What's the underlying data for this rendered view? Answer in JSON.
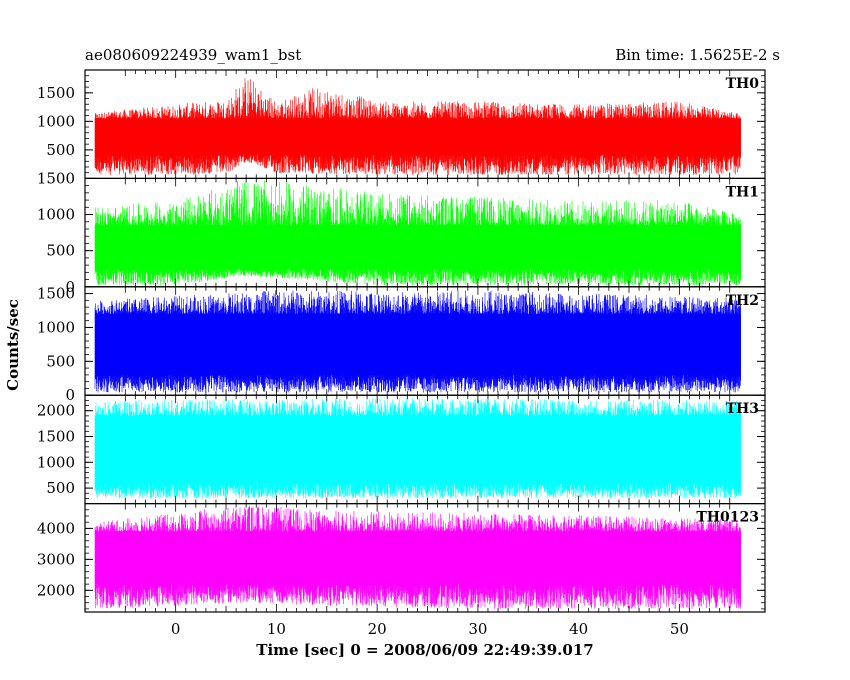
{
  "header": {
    "left": "ae080609224939_wam1_bst",
    "right": "Bin time: 1.5625E-2 s"
  },
  "chart_data": {
    "type": "line",
    "xlabel": "Time [sec] 0 = 2008/06/09 22:49:39.017",
    "ylabel": "Counts/sec",
    "xlim": [
      -9,
      58.5
    ],
    "x_ticks": [
      0,
      10,
      20,
      30,
      40,
      50
    ],
    "x_tick_labels": [
      "0",
      "10",
      "20",
      "30",
      "40",
      "50"
    ],
    "x_data_range": [
      -8,
      56
    ],
    "bin_time_s": 0.015625,
    "panels": [
      {
        "name": "TH0",
        "color": "#ff0000",
        "ylim": [
          0,
          1900
        ],
        "y_ticks": [
          500,
          1000,
          1500
        ],
        "y_tick_labels": [
          "500",
          "1000",
          "1500"
        ],
        "y_top_label": "",
        "envelope": [
          {
            "x": -8,
            "low": 60,
            "high": 1150
          },
          {
            "x": 0,
            "low": 60,
            "high": 1300
          },
          {
            "x": 5,
            "low": 80,
            "high": 1400
          },
          {
            "x": 7,
            "low": 300,
            "high": 1850
          },
          {
            "x": 10,
            "low": 80,
            "high": 1350
          },
          {
            "x": 14.5,
            "low": 80,
            "high": 1650
          },
          {
            "x": 20,
            "low": 60,
            "high": 1350
          },
          {
            "x": 30,
            "low": 60,
            "high": 1350
          },
          {
            "x": 40,
            "low": 60,
            "high": 1300
          },
          {
            "x": 50,
            "low": 60,
            "high": 1350
          },
          {
            "x": 56,
            "low": 60,
            "high": 1150
          }
        ],
        "mean_band": [
          420,
          1050
        ]
      },
      {
        "name": "TH1",
        "color": "#00ff00",
        "ylim": [
          0,
          1500
        ],
        "y_ticks": [
          0,
          500,
          1000,
          1500
        ],
        "y_tick_labels": [
          "0",
          "500",
          "1000",
          "1500"
        ],
        "envelope": [
          {
            "x": -8,
            "low": 20,
            "high": 1100
          },
          {
            "x": 0,
            "low": 20,
            "high": 1200
          },
          {
            "x": 7,
            "low": 150,
            "high": 1500
          },
          {
            "x": 14,
            "low": 80,
            "high": 1400
          },
          {
            "x": 20,
            "low": 20,
            "high": 1300
          },
          {
            "x": 30,
            "low": 20,
            "high": 1250
          },
          {
            "x": 40,
            "low": 20,
            "high": 1200
          },
          {
            "x": 50,
            "low": 20,
            "high": 1200
          },
          {
            "x": 56,
            "low": 20,
            "high": 1000
          }
        ],
        "mean_band": [
          250,
          850
        ]
      },
      {
        "name": "TH2",
        "color": "#0000ff",
        "ylim": [
          0,
          1600
        ],
        "y_ticks": [
          0,
          500,
          1000,
          1500
        ],
        "y_tick_labels": [
          "0",
          "500",
          "1000",
          "1500"
        ],
        "envelope": [
          {
            "x": -8,
            "low": 40,
            "high": 1400
          },
          {
            "x": 10,
            "low": 40,
            "high": 1550
          },
          {
            "x": 30,
            "low": 40,
            "high": 1550
          },
          {
            "x": 56,
            "low": 40,
            "high": 1450
          }
        ],
        "mean_band": [
          300,
          1200
        ]
      },
      {
        "name": "TH3",
        "color": "#00ffff",
        "ylim": [
          200,
          2300
        ],
        "y_ticks": [
          500,
          1000,
          1500,
          2000
        ],
        "y_tick_labels": [
          "500",
          "1000",
          "1500",
          "2000"
        ],
        "envelope": [
          {
            "x": -8,
            "low": 300,
            "high": 2200
          },
          {
            "x": 20,
            "low": 300,
            "high": 2250
          },
          {
            "x": 56,
            "low": 300,
            "high": 2200
          }
        ],
        "mean_band": [
          600,
          1900
        ]
      },
      {
        "name": "TH0123",
        "color": "#ff00ff",
        "ylim": [
          1300,
          4800
        ],
        "y_ticks": [
          2000,
          3000,
          4000
        ],
        "y_tick_labels": [
          "2000",
          "3000",
          "4000"
        ],
        "envelope": [
          {
            "x": -8,
            "low": 1400,
            "high": 4200
          },
          {
            "x": 7,
            "low": 1600,
            "high": 4800
          },
          {
            "x": 14,
            "low": 1500,
            "high": 4600
          },
          {
            "x": 30,
            "low": 1400,
            "high": 4500
          },
          {
            "x": 56,
            "low": 1400,
            "high": 4300
          }
        ],
        "mean_band": [
          2200,
          3900
        ]
      }
    ]
  }
}
